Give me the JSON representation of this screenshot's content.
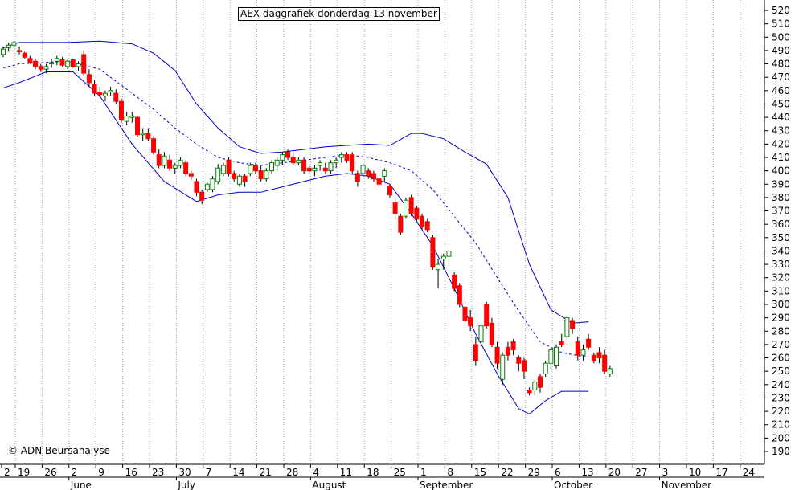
{
  "title": "AEX daggrafiek donderdag 13 november",
  "credit": "© ADN Beursanalyse",
  "chart_data": {
    "type": "candlestick",
    "title": "AEX daggrafiek donderdag 13 november",
    "ylim": [
      185,
      525
    ],
    "y_ticks": [
      190,
      200,
      210,
      220,
      230,
      240,
      250,
      260,
      270,
      280,
      290,
      300,
      310,
      320,
      330,
      340,
      350,
      360,
      370,
      380,
      390,
      400,
      410,
      420,
      430,
      440,
      450,
      460,
      470,
      480,
      490,
      500,
      510,
      520
    ],
    "y_axis_side": "right",
    "x_day_labels": [
      "2",
      "19",
      "26",
      "2",
      "9",
      "16",
      "23",
      "30",
      "7",
      "14",
      "21",
      "28",
      "4",
      "11",
      "18",
      "25",
      "1",
      "8",
      "15",
      "22",
      "29",
      "6",
      "13",
      "20",
      "27",
      "3",
      "10",
      "17",
      "24"
    ],
    "x_month_labels": [
      "June",
      "July",
      "August",
      "September",
      "October",
      "November"
    ],
    "grid": "vertical dotted",
    "up_color": "#008000",
    "down_color": "#ff0000",
    "band_color": "#0000cc",
    "candles": [
      {
        "o": 487,
        "h": 493,
        "l": 485,
        "c": 491
      },
      {
        "o": 492,
        "h": 496,
        "l": 489,
        "c": 494
      },
      {
        "o": 494,
        "h": 497,
        "l": 492,
        "c": 496
      },
      {
        "o": 490,
        "h": 493,
        "l": 487,
        "c": 489
      },
      {
        "o": 488,
        "h": 489,
        "l": 484,
        "c": 485
      },
      {
        "o": 484,
        "h": 486,
        "l": 480,
        "c": 481
      },
      {
        "o": 482,
        "h": 484,
        "l": 476,
        "c": 478
      },
      {
        "o": 478,
        "h": 480,
        "l": 474,
        "c": 476
      },
      {
        "o": 476,
        "h": 480,
        "l": 473,
        "c": 478
      },
      {
        "o": 480,
        "h": 484,
        "l": 477,
        "c": 481
      },
      {
        "o": 482,
        "h": 486,
        "l": 479,
        "c": 484
      },
      {
        "o": 483,
        "h": 485,
        "l": 478,
        "c": 479
      },
      {
        "o": 478,
        "h": 484,
        "l": 476,
        "c": 482
      },
      {
        "o": 483,
        "h": 484,
        "l": 477,
        "c": 478
      },
      {
        "o": 478,
        "h": 482,
        "l": 475,
        "c": 480
      },
      {
        "o": 487,
        "h": 490,
        "l": 471,
        "c": 473
      },
      {
        "o": 472,
        "h": 476,
        "l": 463,
        "c": 466
      },
      {
        "o": 465,
        "h": 468,
        "l": 456,
        "c": 458
      },
      {
        "o": 459,
        "h": 463,
        "l": 455,
        "c": 457
      },
      {
        "o": 456,
        "h": 460,
        "l": 452,
        "c": 458
      },
      {
        "o": 459,
        "h": 463,
        "l": 456,
        "c": 460
      },
      {
        "o": 458,
        "h": 461,
        "l": 450,
        "c": 452
      },
      {
        "o": 452,
        "h": 454,
        "l": 436,
        "c": 438
      },
      {
        "o": 437,
        "h": 444,
        "l": 434,
        "c": 441
      },
      {
        "o": 440,
        "h": 444,
        "l": 436,
        "c": 441
      },
      {
        "o": 440,
        "h": 441,
        "l": 425,
        "c": 427
      },
      {
        "o": 427,
        "h": 432,
        "l": 422,
        "c": 428
      },
      {
        "o": 428,
        "h": 432,
        "l": 422,
        "c": 424
      },
      {
        "o": 424,
        "h": 426,
        "l": 412,
        "c": 414
      },
      {
        "o": 412,
        "h": 416,
        "l": 402,
        "c": 404
      },
      {
        "o": 404,
        "h": 414,
        "l": 402,
        "c": 411
      },
      {
        "o": 408,
        "h": 412,
        "l": 400,
        "c": 402
      },
      {
        "o": 402,
        "h": 406,
        "l": 398,
        "c": 404
      },
      {
        "o": 404,
        "h": 410,
        "l": 402,
        "c": 408
      },
      {
        "o": 406,
        "h": 408,
        "l": 396,
        "c": 398
      },
      {
        "o": 398,
        "h": 400,
        "l": 393,
        "c": 396
      },
      {
        "o": 392,
        "h": 394,
        "l": 381,
        "c": 384
      },
      {
        "o": 384,
        "h": 386,
        "l": 375,
        "c": 378
      },
      {
        "o": 386,
        "h": 392,
        "l": 384,
        "c": 390
      },
      {
        "o": 386,
        "h": 396,
        "l": 384,
        "c": 394
      },
      {
        "o": 392,
        "h": 405,
        "l": 390,
        "c": 402
      },
      {
        "o": 398,
        "h": 406,
        "l": 396,
        "c": 404
      },
      {
        "o": 408,
        "h": 410,
        "l": 396,
        "c": 398
      },
      {
        "o": 398,
        "h": 400,
        "l": 392,
        "c": 394
      },
      {
        "o": 390,
        "h": 398,
        "l": 388,
        "c": 396
      },
      {
        "o": 396,
        "h": 398,
        "l": 388,
        "c": 392
      },
      {
        "o": 398,
        "h": 406,
        "l": 396,
        "c": 404
      },
      {
        "o": 404,
        "h": 406,
        "l": 398,
        "c": 400
      },
      {
        "o": 400,
        "h": 404,
        "l": 392,
        "c": 394
      },
      {
        "o": 394,
        "h": 402,
        "l": 392,
        "c": 400
      },
      {
        "o": 400,
        "h": 408,
        "l": 398,
        "c": 406
      },
      {
        "o": 404,
        "h": 410,
        "l": 400,
        "c": 408
      },
      {
        "o": 408,
        "h": 414,
        "l": 404,
        "c": 412
      },
      {
        "o": 414,
        "h": 416,
        "l": 408,
        "c": 410
      },
      {
        "o": 410,
        "h": 414,
        "l": 404,
        "c": 406
      },
      {
        "o": 406,
        "h": 410,
        "l": 404,
        "c": 408
      },
      {
        "o": 408,
        "h": 410,
        "l": 398,
        "c": 400
      },
      {
        "o": 402,
        "h": 404,
        "l": 398,
        "c": 400
      },
      {
        "o": 400,
        "h": 404,
        "l": 396,
        "c": 402
      },
      {
        "o": 404,
        "h": 408,
        "l": 400,
        "c": 406
      },
      {
        "o": 402,
        "h": 406,
        "l": 398,
        "c": 400
      },
      {
        "o": 400,
        "h": 408,
        "l": 398,
        "c": 406
      },
      {
        "o": 406,
        "h": 410,
        "l": 402,
        "c": 408
      },
      {
        "o": 410,
        "h": 414,
        "l": 406,
        "c": 412
      },
      {
        "o": 412,
        "h": 414,
        "l": 406,
        "c": 408
      },
      {
        "o": 412,
        "h": 414,
        "l": 398,
        "c": 400
      },
      {
        "o": 398,
        "h": 400,
        "l": 388,
        "c": 392
      },
      {
        "o": 398,
        "h": 406,
        "l": 396,
        "c": 404
      },
      {
        "o": 400,
        "h": 402,
        "l": 394,
        "c": 396
      },
      {
        "o": 398,
        "h": 400,
        "l": 392,
        "c": 394
      },
      {
        "o": 394,
        "h": 396,
        "l": 388,
        "c": 390
      },
      {
        "o": 396,
        "h": 402,
        "l": 392,
        "c": 400
      },
      {
        "o": 388,
        "h": 390,
        "l": 380,
        "c": 382
      },
      {
        "o": 376,
        "h": 380,
        "l": 364,
        "c": 368
      },
      {
        "o": 366,
        "h": 368,
        "l": 352,
        "c": 354
      },
      {
        "o": 366,
        "h": 380,
        "l": 364,
        "c": 378
      },
      {
        "o": 380,
        "h": 382,
        "l": 366,
        "c": 368
      },
      {
        "o": 372,
        "h": 374,
        "l": 362,
        "c": 364
      },
      {
        "o": 366,
        "h": 368,
        "l": 356,
        "c": 358
      },
      {
        "o": 362,
        "h": 364,
        "l": 354,
        "c": 356
      },
      {
        "o": 350,
        "h": 352,
        "l": 326,
        "c": 328
      },
      {
        "o": 326,
        "h": 334,
        "l": 312,
        "c": 330
      },
      {
        "o": 334,
        "h": 338,
        "l": 326,
        "c": 336
      },
      {
        "o": 336,
        "h": 342,
        "l": 332,
        "c": 340
      },
      {
        "o": 322,
        "h": 324,
        "l": 310,
        "c": 312
      },
      {
        "o": 314,
        "h": 316,
        "l": 298,
        "c": 300
      },
      {
        "o": 298,
        "h": 310,
        "l": 284,
        "c": 288
      },
      {
        "o": 290,
        "h": 296,
        "l": 280,
        "c": 284
      },
      {
        "o": 270,
        "h": 276,
        "l": 254,
        "c": 258
      },
      {
        "o": 272,
        "h": 286,
        "l": 270,
        "c": 284
      },
      {
        "o": 300,
        "h": 302,
        "l": 282,
        "c": 284
      },
      {
        "o": 286,
        "h": 290,
        "l": 268,
        "c": 270
      },
      {
        "o": 268,
        "h": 272,
        "l": 252,
        "c": 256
      },
      {
        "o": 244,
        "h": 264,
        "l": 240,
        "c": 262
      },
      {
        "o": 268,
        "h": 272,
        "l": 258,
        "c": 262
      },
      {
        "o": 272,
        "h": 274,
        "l": 262,
        "c": 266
      },
      {
        "o": 260,
        "h": 262,
        "l": 250,
        "c": 256
      },
      {
        "o": 258,
        "h": 260,
        "l": 244,
        "c": 250
      },
      {
        "o": 236,
        "h": 238,
        "l": 232,
        "c": 234
      },
      {
        "o": 236,
        "h": 244,
        "l": 232,
        "c": 242
      },
      {
        "o": 246,
        "h": 248,
        "l": 234,
        "c": 238
      },
      {
        "o": 248,
        "h": 258,
        "l": 246,
        "c": 256
      },
      {
        "o": 256,
        "h": 268,
        "l": 252,
        "c": 266
      },
      {
        "o": 254,
        "h": 270,
        "l": 252,
        "c": 268
      },
      {
        "o": 272,
        "h": 278,
        "l": 268,
        "c": 270
      },
      {
        "o": 276,
        "h": 292,
        "l": 272,
        "c": 290
      },
      {
        "o": 288,
        "h": 290,
        "l": 278,
        "c": 282
      },
      {
        "o": 272,
        "h": 276,
        "l": 258,
        "c": 262
      },
      {
        "o": 262,
        "h": 270,
        "l": 258,
        "c": 266
      },
      {
        "o": 274,
        "h": 278,
        "l": 266,
        "c": 268
      },
      {
        "o": 262,
        "h": 264,
        "l": 256,
        "c": 258
      },
      {
        "o": 264,
        "h": 268,
        "l": 256,
        "c": 260
      },
      {
        "o": 262,
        "h": 266,
        "l": 248,
        "c": 250
      },
      {
        "o": 248,
        "h": 254,
        "l": 246,
        "c": 252
      }
    ],
    "bollinger": {
      "upper": [
        {
          "i": 0,
          "v": 492
        },
        {
          "i": 3,
          "v": 496
        },
        {
          "i": 12,
          "v": 496
        },
        {
          "i": 18,
          "v": 497
        },
        {
          "i": 24,
          "v": 495
        },
        {
          "i": 28,
          "v": 488
        },
        {
          "i": 32,
          "v": 475
        },
        {
          "i": 36,
          "v": 450
        },
        {
          "i": 40,
          "v": 432
        },
        {
          "i": 44,
          "v": 418
        },
        {
          "i": 48,
          "v": 413
        },
        {
          "i": 52,
          "v": 414
        },
        {
          "i": 56,
          "v": 416
        },
        {
          "i": 60,
          "v": 418
        },
        {
          "i": 64,
          "v": 419
        },
        {
          "i": 68,
          "v": 420
        },
        {
          "i": 72,
          "v": 419
        },
        {
          "i": 76,
          "v": 428
        },
        {
          "i": 78,
          "v": 428
        },
        {
          "i": 82,
          "v": 424
        },
        {
          "i": 86,
          "v": 414
        },
        {
          "i": 90,
          "v": 405
        },
        {
          "i": 94,
          "v": 380
        },
        {
          "i": 98,
          "v": 330
        },
        {
          "i": 102,
          "v": 296
        },
        {
          "i": 106,
          "v": 286
        },
        {
          "i": 109,
          "v": 287
        }
      ],
      "middle": [
        {
          "i": 0,
          "v": 477
        },
        {
          "i": 3,
          "v": 480
        },
        {
          "i": 12,
          "v": 482
        },
        {
          "i": 18,
          "v": 476
        },
        {
          "i": 24,
          "v": 458
        },
        {
          "i": 28,
          "v": 446
        },
        {
          "i": 32,
          "v": 432
        },
        {
          "i": 36,
          "v": 420
        },
        {
          "i": 40,
          "v": 410
        },
        {
          "i": 44,
          "v": 406
        },
        {
          "i": 48,
          "v": 404
        },
        {
          "i": 52,
          "v": 406
        },
        {
          "i": 56,
          "v": 408
        },
        {
          "i": 60,
          "v": 410
        },
        {
          "i": 64,
          "v": 412
        },
        {
          "i": 68,
          "v": 410
        },
        {
          "i": 72,
          "v": 406
        },
        {
          "i": 76,
          "v": 400
        },
        {
          "i": 80,
          "v": 386
        },
        {
          "i": 84,
          "v": 366
        },
        {
          "i": 88,
          "v": 346
        },
        {
          "i": 92,
          "v": 320
        },
        {
          "i": 96,
          "v": 295
        },
        {
          "i": 100,
          "v": 272
        },
        {
          "i": 104,
          "v": 264
        },
        {
          "i": 108,
          "v": 261
        },
        {
          "i": 109,
          "v": 261
        }
      ],
      "lower": [
        {
          "i": 0,
          "v": 462
        },
        {
          "i": 3,
          "v": 466
        },
        {
          "i": 8,
          "v": 474
        },
        {
          "i": 13,
          "v": 474
        },
        {
          "i": 18,
          "v": 456
        },
        {
          "i": 24,
          "v": 420
        },
        {
          "i": 30,
          "v": 392
        },
        {
          "i": 36,
          "v": 377
        },
        {
          "i": 40,
          "v": 382
        },
        {
          "i": 44,
          "v": 384
        },
        {
          "i": 48,
          "v": 384
        },
        {
          "i": 52,
          "v": 388
        },
        {
          "i": 56,
          "v": 392
        },
        {
          "i": 60,
          "v": 396
        },
        {
          "i": 64,
          "v": 398
        },
        {
          "i": 68,
          "v": 396
        },
        {
          "i": 72,
          "v": 390
        },
        {
          "i": 76,
          "v": 368
        },
        {
          "i": 80,
          "v": 344
        },
        {
          "i": 84,
          "v": 312
        },
        {
          "i": 88,
          "v": 278
        },
        {
          "i": 92,
          "v": 248
        },
        {
          "i": 96,
          "v": 222
        },
        {
          "i": 98,
          "v": 218
        },
        {
          "i": 101,
          "v": 228
        },
        {
          "i": 104,
          "v": 235
        },
        {
          "i": 109,
          "v": 235
        }
      ]
    }
  }
}
